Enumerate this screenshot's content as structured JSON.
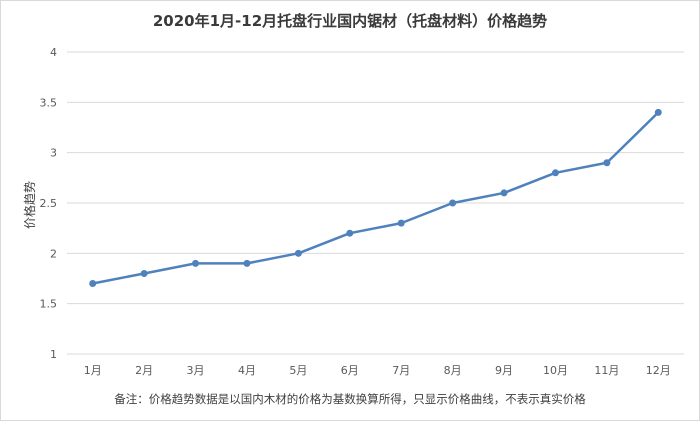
{
  "chart_data": {
    "type": "line",
    "title": "2020年1月-12月托盘行业国内锯材（托盘材料）价格趋势",
    "ylabel": "价格趋势",
    "xlabel": "",
    "categories": [
      "1月",
      "2月",
      "3月",
      "4月",
      "5月",
      "6月",
      "7月",
      "8月",
      "9月",
      "10月",
      "11月",
      "12月"
    ],
    "series": [
      {
        "values": [
          1.7,
          1.8,
          1.9,
          1.9,
          2.0,
          2.2,
          2.3,
          2.5,
          2.6,
          2.8,
          2.9,
          3.4
        ]
      }
    ],
    "ylim": [
      1,
      4
    ],
    "yticks": [
      "1",
      "1.5",
      "2",
      "2.5",
      "3",
      "3.5",
      "4"
    ],
    "grid": true,
    "line_color": "#4f81bd"
  },
  "note": "备注：价格趋势数据是以国内木材的价格为基数换算所得，只显示价格曲线，不表示真实价格"
}
